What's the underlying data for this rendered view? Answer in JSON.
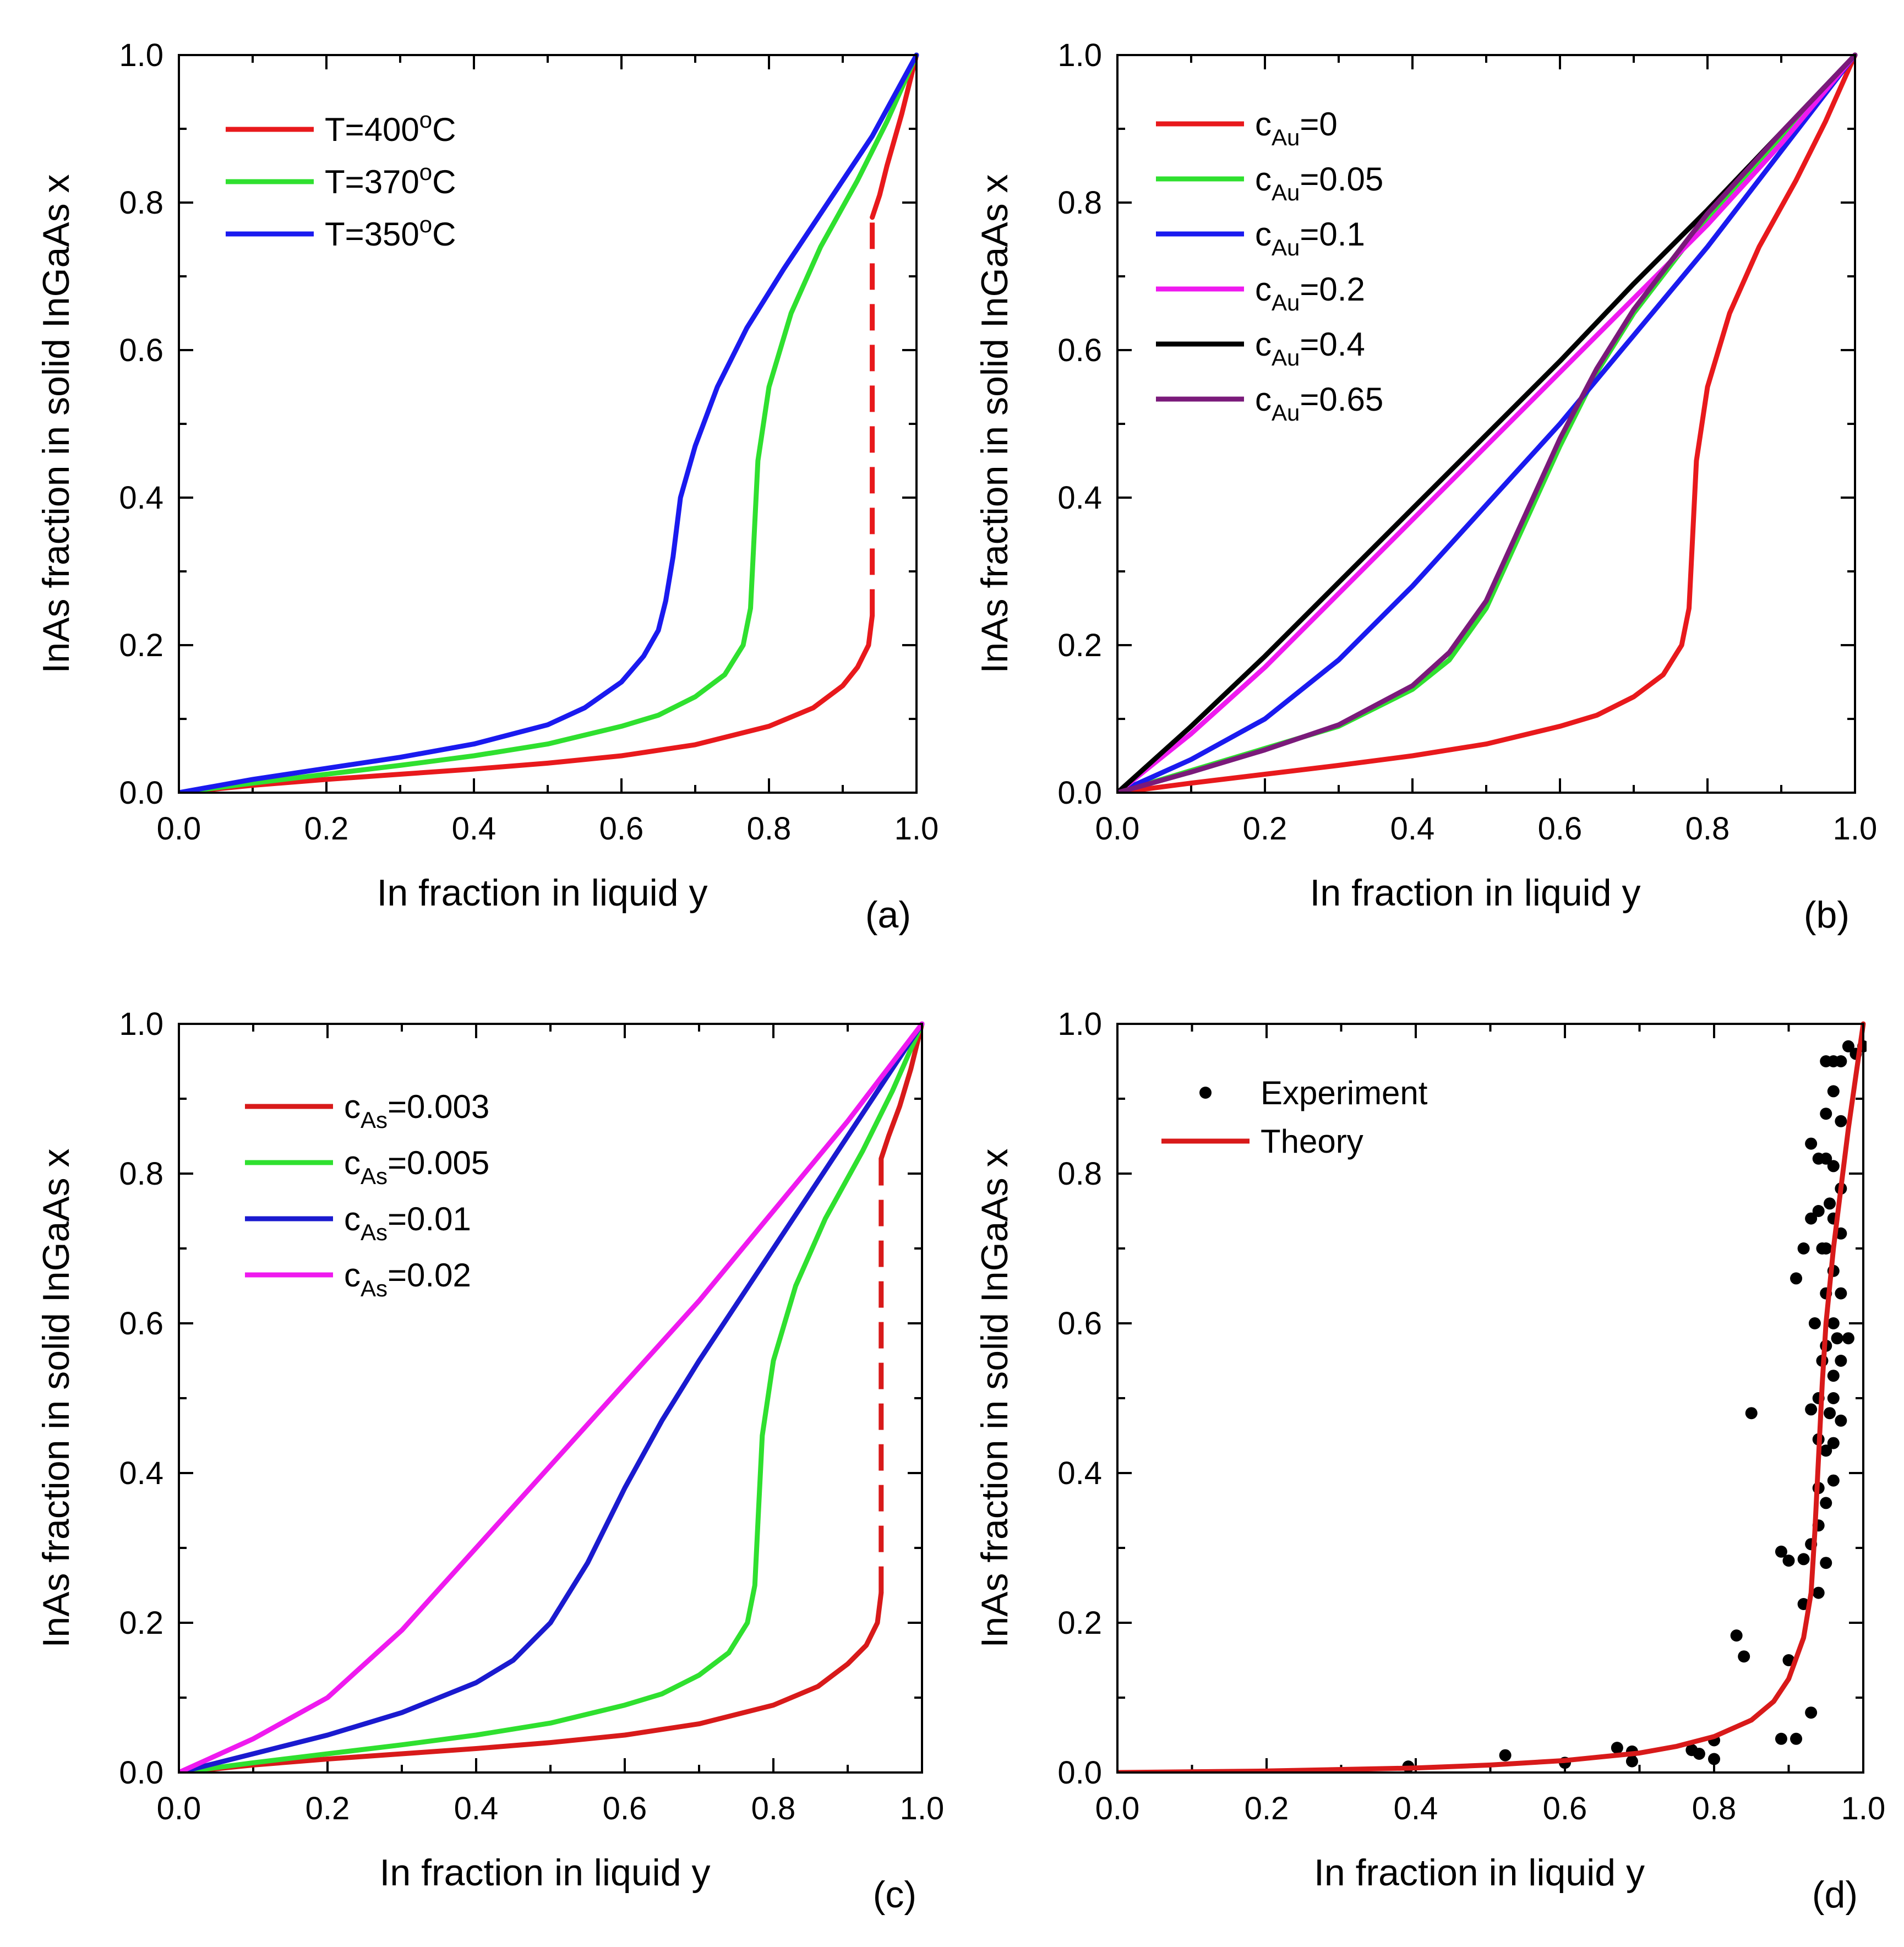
{
  "chart_data": [
    {
      "panel": "a",
      "type": "line",
      "panel_label": "(a)",
      "xlabel": "In fraction in liquid y",
      "ylabel": "InAs fraction in solid InGaAs x",
      "xlim": [
        0,
        1
      ],
      "ylim": [
        0,
        1
      ],
      "xticks": [
        "0.0",
        "0.2",
        "0.4",
        "0.6",
        "0.8",
        "1.0"
      ],
      "yticks": [
        "0.0",
        "0.2",
        "0.4",
        "0.6",
        "0.8",
        "1.0"
      ],
      "legend_position": "top-left",
      "series": [
        {
          "name": "T=400°C",
          "label_main": "T=400",
          "label_sup": "o",
          "label_end": "C",
          "color": "#e8191c",
          "x": [
            0,
            0.1,
            0.2,
            0.3,
            0.4,
            0.5,
            0.6,
            0.7,
            0.8,
            0.86,
            0.9,
            0.92,
            0.935,
            0.94
          ],
          "y": [
            0,
            0.01,
            0.018,
            0.025,
            0.032,
            0.04,
            0.05,
            0.065,
            0.09,
            0.115,
            0.145,
            0.17,
            0.2,
            0.24
          ]
        },
        {
          "name": "T=400°C (dashed)",
          "color": "#e8191c",
          "dashed": true,
          "x": [
            0.94,
            0.94
          ],
          "y": [
            0.24,
            0.78
          ]
        },
        {
          "name": "T=400°C (upper)",
          "color": "#e8191c",
          "x": [
            0.94,
            0.95,
            0.96,
            0.98,
            1.0
          ],
          "y": [
            0.78,
            0.81,
            0.85,
            0.92,
            1.0
          ]
        },
        {
          "name": "T=370°C",
          "label_main": "T=370",
          "label_sup": "o",
          "label_end": "C",
          "color": "#2fe02f",
          "x": [
            0,
            0.1,
            0.2,
            0.3,
            0.4,
            0.5,
            0.6,
            0.65,
            0.7,
            0.74,
            0.765,
            0.775,
            0.78,
            0.785,
            0.8,
            0.83,
            0.87,
            0.92,
            0.96,
            1.0
          ],
          "y": [
            0,
            0.013,
            0.025,
            0.037,
            0.05,
            0.066,
            0.09,
            0.105,
            0.13,
            0.16,
            0.2,
            0.25,
            0.35,
            0.45,
            0.55,
            0.65,
            0.74,
            0.83,
            0.91,
            1.0
          ]
        },
        {
          "name": "T=350°C",
          "label_main": "T=350",
          "label_sup": "o",
          "label_end": "C",
          "color": "#1a1aef",
          "x": [
            0,
            0.1,
            0.2,
            0.3,
            0.4,
            0.5,
            0.55,
            0.6,
            0.63,
            0.65,
            0.66,
            0.67,
            0.68,
            0.7,
            0.73,
            0.77,
            0.82,
            0.88,
            0.94,
            1.0
          ],
          "y": [
            0,
            0.018,
            0.033,
            0.048,
            0.066,
            0.092,
            0.115,
            0.15,
            0.185,
            0.22,
            0.26,
            0.32,
            0.4,
            0.47,
            0.55,
            0.63,
            0.71,
            0.8,
            0.89,
            1.0
          ]
        }
      ]
    },
    {
      "panel": "b",
      "type": "line",
      "panel_label": "(b)",
      "xlabel": "In fraction in liquid y",
      "ylabel": "InAs fraction in solid InGaAs x",
      "xlim": [
        0,
        1
      ],
      "ylim": [
        0,
        1
      ],
      "xticks": [
        "0.0",
        "0.2",
        "0.4",
        "0.6",
        "0.8",
        "1.0"
      ],
      "yticks": [
        "0.0",
        "0.2",
        "0.4",
        "0.6",
        "0.8",
        "1.0"
      ],
      "legend_position": "top-left",
      "series": [
        {
          "name": "cAu=0",
          "label_main": "c",
          "label_sub": "Au",
          "label_end": "=0",
          "color": "#e8191c",
          "x": [
            0,
            0.1,
            0.2,
            0.3,
            0.4,
            0.5,
            0.6,
            0.65,
            0.7,
            0.74,
            0.765,
            0.775,
            0.78,
            0.785,
            0.8,
            0.83,
            0.87,
            0.92,
            0.96,
            1.0
          ],
          "y": [
            0,
            0.013,
            0.025,
            0.037,
            0.05,
            0.066,
            0.09,
            0.105,
            0.13,
            0.16,
            0.2,
            0.25,
            0.35,
            0.45,
            0.55,
            0.65,
            0.74,
            0.83,
            0.91,
            1.0
          ]
        },
        {
          "name": "cAu=0.05",
          "label_main": "c",
          "label_sub": "Au",
          "label_end": "=0.05",
          "color": "#2fe02f",
          "x": [
            0,
            0.1,
            0.2,
            0.3,
            0.4,
            0.45,
            0.5,
            0.55,
            0.6,
            0.65,
            0.7,
            0.8,
            0.9,
            1.0
          ],
          "y": [
            0,
            0.03,
            0.06,
            0.09,
            0.14,
            0.18,
            0.25,
            0.36,
            0.47,
            0.57,
            0.65,
            0.78,
            0.89,
            1.0
          ]
        },
        {
          "name": "cAu=0.1",
          "label_main": "c",
          "label_sub": "Au",
          "label_end": "=0.1",
          "color": "#1a1aef",
          "x": [
            0,
            0.1,
            0.2,
            0.3,
            0.4,
            0.5,
            0.6,
            0.7,
            0.8,
            0.9,
            1.0
          ],
          "y": [
            0,
            0.045,
            0.1,
            0.18,
            0.28,
            0.39,
            0.5,
            0.62,
            0.74,
            0.87,
            1.0
          ]
        },
        {
          "name": "cAu=0.2",
          "label_main": "c",
          "label_sub": "Au",
          "label_end": "=0.2",
          "color": "#ef1aef",
          "x": [
            0,
            0.1,
            0.2,
            0.3,
            0.4,
            0.5,
            0.6,
            0.7,
            0.8,
            0.9,
            1.0
          ],
          "y": [
            0,
            0.08,
            0.17,
            0.27,
            0.37,
            0.47,
            0.57,
            0.67,
            0.77,
            0.88,
            1.0
          ]
        },
        {
          "name": "cAu=0.4",
          "label_main": "c",
          "label_sub": "Au",
          "label_end": "=0.4",
          "color": "#000000",
          "x": [
            0,
            0.1,
            0.2,
            0.3,
            0.4,
            0.5,
            0.6,
            0.7,
            0.8,
            0.9,
            1.0
          ],
          "y": [
            0,
            0.09,
            0.185,
            0.285,
            0.385,
            0.485,
            0.585,
            0.69,
            0.79,
            0.895,
            1.0
          ]
        },
        {
          "name": "cAu=0.65",
          "label_main": "c",
          "label_sub": "Au",
          "label_end": "=0.65",
          "color": "#7a1a7a",
          "x": [
            0,
            0.1,
            0.2,
            0.3,
            0.4,
            0.45,
            0.5,
            0.55,
            0.6,
            0.65,
            0.7,
            0.8,
            0.9,
            1.0
          ],
          "y": [
            0,
            0.028,
            0.058,
            0.092,
            0.145,
            0.19,
            0.26,
            0.37,
            0.48,
            0.575,
            0.655,
            0.785,
            0.895,
            1.0
          ]
        }
      ]
    },
    {
      "panel": "c",
      "type": "line",
      "panel_label": "(c)",
      "xlabel": "In fraction in liquid y",
      "ylabel": "InAs fraction in solid InGaAs x",
      "xlim": [
        0,
        1
      ],
      "ylim": [
        0,
        1
      ],
      "xticks": [
        "0.0",
        "0.2",
        "0.4",
        "0.6",
        "0.8",
        "1.0"
      ],
      "yticks": [
        "0.0",
        "0.2",
        "0.4",
        "0.6",
        "0.8",
        "1.0"
      ],
      "legend_position": "top-left",
      "series": [
        {
          "name": "cAs=0.003",
          "label_main": "c",
          "label_sub": "As",
          "label_end": "=0.003",
          "color": "#d81a1a",
          "x": [
            0,
            0.1,
            0.2,
            0.3,
            0.4,
            0.5,
            0.6,
            0.7,
            0.8,
            0.86,
            0.9,
            0.925,
            0.94,
            0.945
          ],
          "y": [
            0,
            0.01,
            0.018,
            0.025,
            0.032,
            0.04,
            0.05,
            0.065,
            0.09,
            0.115,
            0.145,
            0.17,
            0.2,
            0.24
          ]
        },
        {
          "name": "cAs=0.003 (dashed)",
          "color": "#d81a1a",
          "dashed": true,
          "x": [
            0.945,
            0.945
          ],
          "y": [
            0.24,
            0.82
          ]
        },
        {
          "name": "cAs=0.003 (upper)",
          "color": "#d81a1a",
          "x": [
            0.945,
            0.955,
            0.97,
            0.985,
            1.0
          ],
          "y": [
            0.82,
            0.85,
            0.89,
            0.94,
            1.0
          ]
        },
        {
          "name": "cAs=0.005",
          "label_main": "c",
          "label_sub": "As",
          "label_end": "=0.005",
          "color": "#2fe02f",
          "x": [
            0,
            0.1,
            0.2,
            0.3,
            0.4,
            0.5,
            0.6,
            0.65,
            0.7,
            0.74,
            0.765,
            0.775,
            0.78,
            0.785,
            0.8,
            0.83,
            0.87,
            0.92,
            0.96,
            1.0
          ],
          "y": [
            0,
            0.013,
            0.025,
            0.037,
            0.05,
            0.066,
            0.09,
            0.105,
            0.13,
            0.16,
            0.2,
            0.25,
            0.35,
            0.45,
            0.55,
            0.65,
            0.74,
            0.83,
            0.91,
            1.0
          ]
        },
        {
          "name": "cAs=0.01",
          "label_main": "c",
          "label_sub": "As",
          "label_end": "=0.01",
          "color": "#1a1acf",
          "x": [
            0,
            0.1,
            0.2,
            0.3,
            0.4,
            0.45,
            0.5,
            0.55,
            0.58,
            0.6,
            0.65,
            0.7,
            0.8,
            0.9,
            1.0
          ],
          "y": [
            0,
            0.025,
            0.05,
            0.08,
            0.12,
            0.15,
            0.2,
            0.28,
            0.34,
            0.38,
            0.47,
            0.55,
            0.7,
            0.85,
            1.0
          ]
        },
        {
          "name": "cAs=0.02",
          "label_main": "c",
          "label_sub": "As",
          "label_end": "=0.02",
          "color": "#ef1aef",
          "x": [
            0,
            0.1,
            0.2,
            0.3,
            0.4,
            0.5,
            0.6,
            0.7,
            0.8,
            0.9,
            1.0
          ],
          "y": [
            0,
            0.045,
            0.1,
            0.19,
            0.3,
            0.41,
            0.52,
            0.63,
            0.75,
            0.87,
            1.0
          ]
        }
      ]
    },
    {
      "panel": "d",
      "type": "scatter",
      "panel_label": "(d)",
      "xlabel": "In fraction in liquid y",
      "ylabel": "InAs fraction in solid InGaAs x",
      "xlim": [
        0,
        1
      ],
      "ylim": [
        0,
        1
      ],
      "xticks": [
        "0.0",
        "0.2",
        "0.4",
        "0.6",
        "0.8",
        "1.0"
      ],
      "yticks": [
        "0.0",
        "0.2",
        "0.4",
        "0.6",
        "0.8",
        "1.0"
      ],
      "legend_position": "top-left",
      "series": [
        {
          "name": "Experiment",
          "label_main": "Experiment",
          "kind": "scatter",
          "color": "#000000",
          "points": [
            [
              0.39,
              0.008
            ],
            [
              0.52,
              0.023
            ],
            [
              0.6,
              0.013
            ],
            [
              0.67,
              0.033
            ],
            [
              0.69,
              0.028
            ],
            [
              0.69,
              0.015
            ],
            [
              0.77,
              0.03
            ],
            [
              0.78,
              0.025
            ],
            [
              0.8,
              0.043
            ],
            [
              0.8,
              0.018
            ],
            [
              0.83,
              0.183
            ],
            [
              0.84,
              0.155
            ],
            [
              0.85,
              0.48
            ],
            [
              0.89,
              0.295
            ],
            [
              0.89,
              0.045
            ],
            [
              0.9,
              0.283
            ],
            [
              0.9,
              0.15
            ],
            [
              0.91,
              0.045
            ],
            [
              0.91,
              0.66
            ],
            [
              0.92,
              0.7
            ],
            [
              0.92,
              0.285
            ],
            [
              0.92,
              0.225
            ],
            [
              0.93,
              0.84
            ],
            [
              0.93,
              0.485
            ],
            [
              0.93,
              0.305
            ],
            [
              0.93,
              0.08
            ],
            [
              0.93,
              0.74
            ],
            [
              0.94,
              0.82
            ],
            [
              0.94,
              0.75
            ],
            [
              0.94,
              0.5
            ],
            [
              0.94,
              0.445
            ],
            [
              0.94,
              0.38
            ],
            [
              0.94,
              0.33
            ],
            [
              0.94,
              0.24
            ],
            [
              0.95,
              0.95
            ],
            [
              0.95,
              0.88
            ],
            [
              0.95,
              0.82
            ],
            [
              0.95,
              0.7
            ],
            [
              0.95,
              0.64
            ],
            [
              0.95,
              0.57
            ],
            [
              0.95,
              0.43
            ],
            [
              0.95,
              0.36
            ],
            [
              0.95,
              0.28
            ],
            [
              0.96,
              0.95
            ],
            [
              0.96,
              0.91
            ],
            [
              0.96,
              0.81
            ],
            [
              0.96,
              0.74
            ],
            [
              0.96,
              0.67
            ],
            [
              0.96,
              0.6
            ],
            [
              0.96,
              0.53
            ],
            [
              0.96,
              0.5
            ],
            [
              0.96,
              0.44
            ],
            [
              0.96,
              0.39
            ],
            [
              0.97,
              0.95
            ],
            [
              0.97,
              0.87
            ],
            [
              0.97,
              0.78
            ],
            [
              0.97,
              0.72
            ],
            [
              0.97,
              0.64
            ],
            [
              0.97,
              0.55
            ],
            [
              0.97,
              0.47
            ],
            [
              0.98,
              0.97
            ],
            [
              0.98,
              0.58
            ],
            [
              0.99,
              0.96
            ],
            [
              1.0,
              0.97
            ],
            [
              0.945,
              0.55
            ],
            [
              0.955,
              0.48
            ],
            [
              0.965,
              0.58
            ],
            [
              0.935,
              0.6
            ],
            [
              0.945,
              0.7
            ],
            [
              0.955,
              0.76
            ]
          ]
        },
        {
          "name": "Theory",
          "label_main": "Theory",
          "kind": "line",
          "color": "#d81a1a",
          "x": [
            0,
            0.2,
            0.4,
            0.5,
            0.6,
            0.7,
            0.75,
            0.8,
            0.85,
            0.88,
            0.9,
            0.92,
            0.93,
            0.935,
            0.94,
            0.945,
            0.95,
            0.96,
            0.97,
            0.98,
            0.99,
            1.0
          ],
          "y": [
            0,
            0.002,
            0.006,
            0.01,
            0.016,
            0.026,
            0.035,
            0.048,
            0.07,
            0.095,
            0.125,
            0.18,
            0.24,
            0.32,
            0.42,
            0.52,
            0.6,
            0.7,
            0.78,
            0.86,
            0.93,
            1.0
          ]
        }
      ]
    }
  ]
}
